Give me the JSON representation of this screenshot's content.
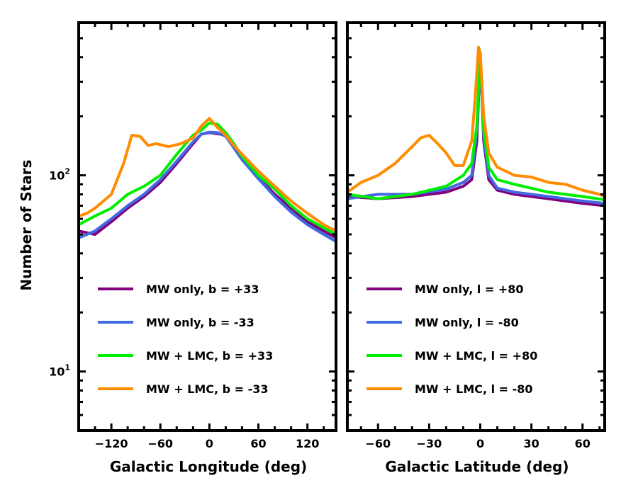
{
  "chart_data": [
    {
      "type": "line",
      "yscale": "log",
      "xlabel": "Galactic Longitude (deg)",
      "ylabel": "Number of Stars",
      "xlim": [
        -160,
        155
      ],
      "ylim": [
        5,
        600
      ],
      "xticks": [
        -120,
        -60,
        0,
        60,
        120
      ],
      "xtick_labels": [
        "−120",
        "−60",
        "0",
        "60",
        "120"
      ],
      "yticks": [
        {
          "value": 100,
          "base": "10",
          "exp": "2"
        },
        {
          "value": 10,
          "base": "10",
          "exp": "1"
        }
      ],
      "legend_position": "lower-center",
      "series": [
        {
          "name": "MW only, b = +33",
          "color": "#800080",
          "x": [
            -160,
            -140,
            -120,
            -100,
            -80,
            -60,
            -40,
            -20,
            -10,
            0,
            10,
            20,
            30,
            40,
            60,
            80,
            100,
            120,
            140,
            155
          ],
          "y": [
            52,
            50,
            58,
            68,
            78,
            92,
            115,
            145,
            162,
            165,
            163,
            160,
            140,
            122,
            98,
            80,
            68,
            58,
            52,
            48
          ]
        },
        {
          "name": "MW only, b = -33",
          "color": "#4169E1",
          "x": [
            -160,
            -140,
            -120,
            -100,
            -80,
            -60,
            -40,
            -20,
            -10,
            0,
            10,
            20,
            30,
            40,
            60,
            80,
            100,
            120,
            140,
            155
          ],
          "y": [
            48,
            52,
            60,
            70,
            80,
            95,
            118,
            148,
            162,
            166,
            165,
            158,
            138,
            120,
            96,
            78,
            65,
            56,
            50,
            46
          ]
        },
        {
          "name": "MW + LMC, b = +33",
          "color": "#00EE00",
          "x": [
            -160,
            -140,
            -120,
            -100,
            -80,
            -60,
            -40,
            -20,
            -10,
            0,
            10,
            20,
            30,
            40,
            60,
            80,
            100,
            120,
            140,
            155
          ],
          "y": [
            56,
            62,
            68,
            80,
            88,
            100,
            128,
            160,
            170,
            185,
            182,
            165,
            145,
            125,
            100,
            85,
            70,
            60,
            54,
            50
          ]
        },
        {
          "name": "MW + LMC, b = -33",
          "color": "#FF8C00",
          "x": [
            -160,
            -150,
            -140,
            -120,
            -105,
            -95,
            -85,
            -75,
            -65,
            -50,
            -35,
            -20,
            -10,
            0,
            10,
            20,
            30,
            40,
            60,
            80,
            100,
            120,
            140,
            155
          ],
          "y": [
            62,
            64,
            68,
            80,
            115,
            160,
            158,
            142,
            145,
            140,
            145,
            155,
            178,
            195,
            175,
            160,
            142,
            128,
            105,
            88,
            74,
            64,
            56,
            52
          ]
        }
      ]
    },
    {
      "type": "line",
      "yscale": "log",
      "xlabel": "Galactic Latitude (deg)",
      "ylabel": "",
      "xlim": [
        -78,
        73
      ],
      "ylim": [
        5,
        600
      ],
      "xticks": [
        -60,
        -30,
        0,
        30,
        60
      ],
      "xtick_labels": [
        "−60",
        "−30",
        "0",
        "30",
        "60"
      ],
      "legend_position": "lower-center",
      "series": [
        {
          "name": "MW only, l = +80",
          "color": "#800080",
          "x": [
            -78,
            -60,
            -40,
            -20,
            -10,
            -5,
            -2,
            0,
            2,
            5,
            10,
            20,
            40,
            60,
            73
          ],
          "y": [
            78,
            76,
            78,
            82,
            88,
            95,
            150,
            420,
            150,
            95,
            84,
            80,
            76,
            72,
            70
          ]
        },
        {
          "name": "MW only, l = -80",
          "color": "#4169E1",
          "x": [
            -78,
            -60,
            -40,
            -20,
            -10,
            -5,
            -2,
            0,
            2,
            5,
            10,
            20,
            40,
            60,
            73
          ],
          "y": [
            76,
            80,
            80,
            85,
            92,
            100,
            170,
            400,
            160,
            100,
            86,
            82,
            78,
            74,
            72
          ]
        },
        {
          "name": "MW + LMC, l = +80",
          "color": "#00EE00",
          "x": [
            -78,
            -60,
            -40,
            -20,
            -10,
            -5,
            -2,
            0,
            2,
            5,
            10,
            20,
            40,
            60,
            73
          ],
          "y": [
            80,
            76,
            80,
            88,
            100,
            115,
            180,
            420,
            170,
            110,
            95,
            90,
            82,
            78,
            75
          ]
        },
        {
          "name": "MW + LMC, l = -80",
          "color": "#FF8C00",
          "x": [
            -78,
            -70,
            -60,
            -50,
            -40,
            -35,
            -30,
            -25,
            -20,
            -15,
            -10,
            -5,
            -3,
            -1,
            0,
            2,
            5,
            10,
            20,
            30,
            40,
            50,
            60,
            70,
            73
          ],
          "y": [
            82,
            92,
            100,
            115,
            140,
            155,
            160,
            145,
            130,
            112,
            112,
            150,
            250,
            450,
            420,
            200,
            130,
            110,
            100,
            98,
            92,
            90,
            84,
            80,
            78
          ]
        }
      ]
    }
  ]
}
